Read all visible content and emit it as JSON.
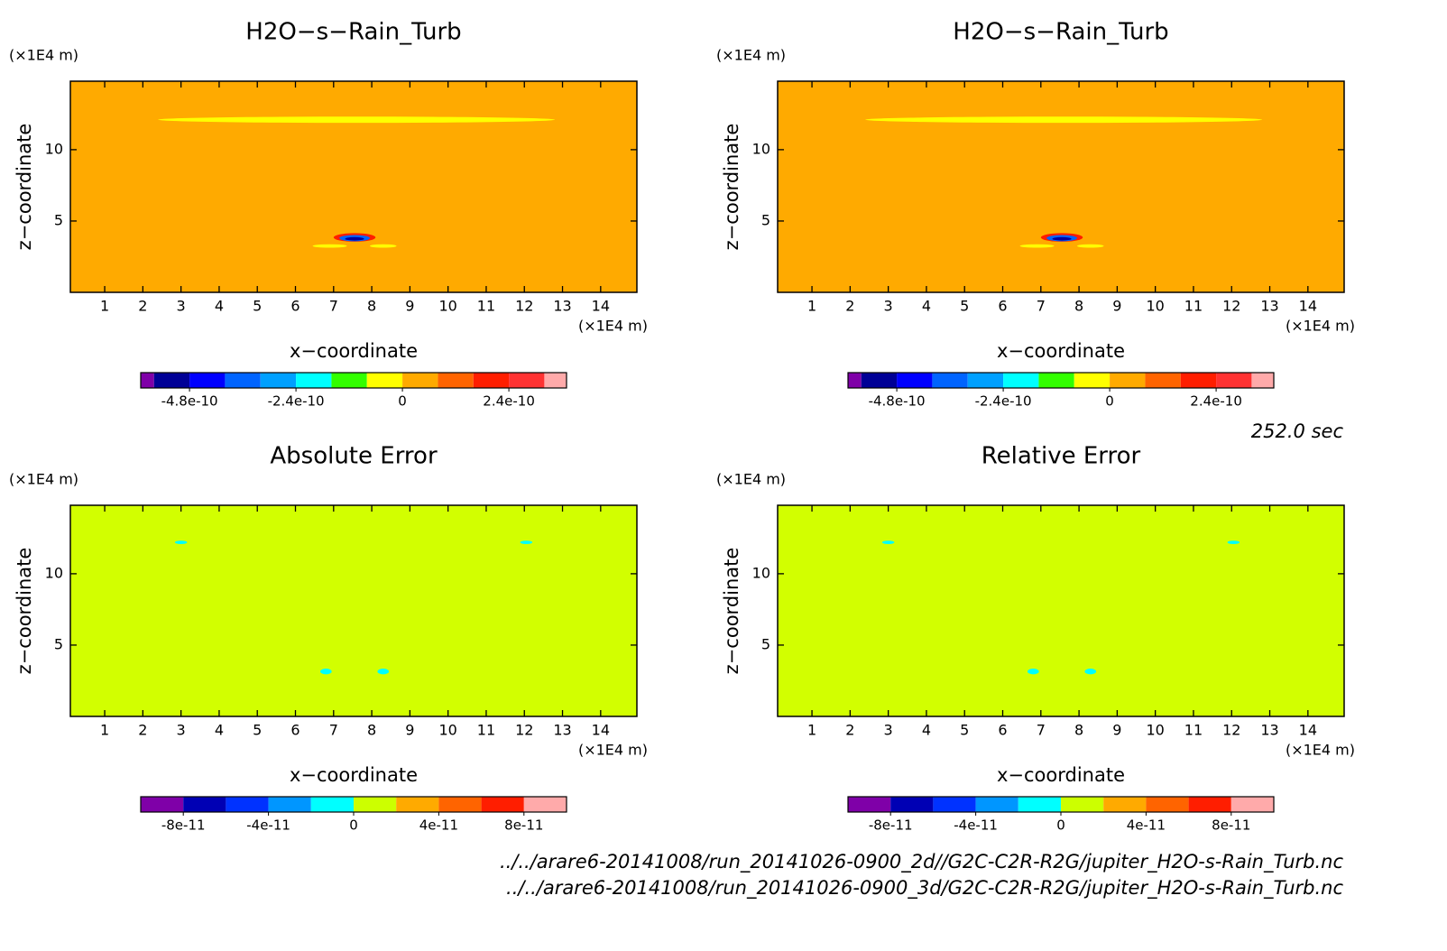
{
  "chart_data": [
    {
      "type": "contour",
      "title": "H2O−s−Rain_Turb",
      "x_label": "x−coordinate",
      "y_label": "z−coordinate",
      "x_unit": "(×1E4 m)",
      "y_unit": "(×1E4 m)",
      "xlim": [
        0.1,
        14.95
      ],
      "ylim": [
        0,
        14.8
      ],
      "xticks": [
        1,
        2,
        3,
        4,
        5,
        6,
        7,
        8,
        9,
        10,
        11,
        12,
        13,
        14
      ],
      "yticks": [
        5,
        10
      ],
      "field_color": "#ffaa00",
      "features": [
        {
          "cx": 7.6,
          "cy": 12.1,
          "rx": 5.2,
          "ry": 0.22,
          "color": "#ffff00"
        },
        {
          "cx": 6.9,
          "cy": 3.25,
          "rx": 0.45,
          "ry": 0.12,
          "color": "#ffff00"
        },
        {
          "cx": 8.3,
          "cy": 3.25,
          "rx": 0.35,
          "ry": 0.12,
          "color": "#ffff00"
        },
        {
          "cx": 7.55,
          "cy": 3.85,
          "rx": 0.55,
          "ry": 0.3,
          "color": "#ff1e00"
        },
        {
          "cx": 7.55,
          "cy": 3.8,
          "rx": 0.4,
          "ry": 0.22,
          "color": "#0064ff"
        },
        {
          "cx": 7.55,
          "cy": 3.75,
          "rx": 0.25,
          "ry": 0.12,
          "color": "#0000a0"
        }
      ],
      "colorbar": {
        "lim": [
          -5.9e-10,
          3.7e-10
        ],
        "ticks": [
          -4.8e-10,
          -2.4e-10,
          0,
          2.4e-10
        ],
        "levels": [
          -5.6e-10,
          -4.8e-10,
          -4e-10,
          -3.2e-10,
          -2.4e-10,
          -1.6e-10,
          -8e-11,
          0,
          8e-11,
          1.6e-10,
          2.4e-10,
          3.2e-10
        ],
        "colors": [
          "#7f00a8",
          "#000096",
          "#0000ff",
          "#0064ff",
          "#00a0ff",
          "#00ffff",
          "#32ff00",
          "#ffff00",
          "#ffaa00",
          "#ff6400",
          "#ff1e00",
          "#ff3232",
          "#ffaaaa"
        ]
      }
    },
    {
      "type": "contour",
      "title": "H2O−s−Rain_Turb",
      "x_label": "x−coordinate",
      "y_label": "z−coordinate",
      "x_unit": "(×1E4 m)",
      "y_unit": "(×1E4 m)",
      "xlim": [
        0.1,
        14.95
      ],
      "ylim": [
        0,
        14.8
      ],
      "xticks": [
        1,
        2,
        3,
        4,
        5,
        6,
        7,
        8,
        9,
        10,
        11,
        12,
        13,
        14
      ],
      "yticks": [
        5,
        10
      ],
      "field_color": "#ffaa00",
      "features": [
        {
          "cx": 7.6,
          "cy": 12.1,
          "rx": 5.2,
          "ry": 0.22,
          "color": "#ffff00"
        },
        {
          "cx": 6.9,
          "cy": 3.25,
          "rx": 0.45,
          "ry": 0.12,
          "color": "#ffff00"
        },
        {
          "cx": 8.3,
          "cy": 3.25,
          "rx": 0.35,
          "ry": 0.12,
          "color": "#ffff00"
        },
        {
          "cx": 7.55,
          "cy": 3.85,
          "rx": 0.55,
          "ry": 0.3,
          "color": "#ff1e00"
        },
        {
          "cx": 7.55,
          "cy": 3.8,
          "rx": 0.4,
          "ry": 0.22,
          "color": "#0064ff"
        },
        {
          "cx": 7.55,
          "cy": 3.75,
          "rx": 0.25,
          "ry": 0.12,
          "color": "#0000a0"
        }
      ],
      "colorbar": {
        "lim": [
          -5.9e-10,
          3.7e-10
        ],
        "ticks": [
          -4.8e-10,
          -2.4e-10,
          0,
          2.4e-10
        ],
        "levels": [
          -5.6e-10,
          -4.8e-10,
          -4e-10,
          -3.2e-10,
          -2.4e-10,
          -1.6e-10,
          -8e-11,
          0,
          8e-11,
          1.6e-10,
          2.4e-10,
          3.2e-10
        ],
        "colors": [
          "#7f00a8",
          "#000096",
          "#0000ff",
          "#0064ff",
          "#00a0ff",
          "#00ffff",
          "#32ff00",
          "#ffff00",
          "#ffaa00",
          "#ff6400",
          "#ff1e00",
          "#ff3232",
          "#ffaaaa"
        ]
      }
    },
    {
      "type": "contour",
      "title": "Absolute Error",
      "x_label": "x−coordinate",
      "y_label": "z−coordinate",
      "x_unit": "(×1E4 m)",
      "y_unit": "(×1E4 m)",
      "xlim": [
        0.1,
        14.95
      ],
      "ylim": [
        0,
        14.8
      ],
      "xticks": [
        1,
        2,
        3,
        4,
        5,
        6,
        7,
        8,
        9,
        10,
        11,
        12,
        13,
        14
      ],
      "yticks": [
        5,
        10
      ],
      "field_color": "#d2ff00",
      "features": [
        {
          "cx": 3.0,
          "cy": 12.2,
          "rx": 0.16,
          "ry": 0.12,
          "color": "#00ffff"
        },
        {
          "cx": 12.05,
          "cy": 12.2,
          "rx": 0.16,
          "ry": 0.12,
          "color": "#00ffff"
        },
        {
          "cx": 6.8,
          "cy": 3.15,
          "rx": 0.15,
          "ry": 0.2,
          "color": "#00ffff"
        },
        {
          "cx": 8.3,
          "cy": 3.15,
          "rx": 0.15,
          "ry": 0.2,
          "color": "#00ffff"
        }
      ],
      "colorbar": {
        "lim": [
          -1e-10,
          1e-10
        ],
        "ticks": [
          -8e-11,
          -4e-11,
          0,
          4e-11,
          8e-11
        ],
        "levels": [
          -8e-11,
          -6e-11,
          -4e-11,
          -2e-11,
          0,
          2e-11,
          4e-11,
          6e-11,
          8e-11
        ],
        "colors": [
          "#7f00a8",
          "#0000b4",
          "#0032ff",
          "#0096ff",
          "#00ffff",
          "#ccff00",
          "#ffaa00",
          "#ff6400",
          "#ff1e00",
          "#ffaaaa"
        ]
      }
    },
    {
      "type": "contour",
      "title": "Relative Error",
      "x_label": "x−coordinate",
      "y_label": "z−coordinate",
      "x_unit": "(×1E4 m)",
      "y_unit": "(×1E4 m)",
      "xlim": [
        0.1,
        14.95
      ],
      "ylim": [
        0,
        14.8
      ],
      "xticks": [
        1,
        2,
        3,
        4,
        5,
        6,
        7,
        8,
        9,
        10,
        11,
        12,
        13,
        14
      ],
      "yticks": [
        5,
        10
      ],
      "field_color": "#d2ff00",
      "features": [
        {
          "cx": 3.0,
          "cy": 12.2,
          "rx": 0.16,
          "ry": 0.12,
          "color": "#00ffff"
        },
        {
          "cx": 12.05,
          "cy": 12.2,
          "rx": 0.16,
          "ry": 0.12,
          "color": "#00ffff"
        },
        {
          "cx": 6.8,
          "cy": 3.15,
          "rx": 0.15,
          "ry": 0.2,
          "color": "#00ffff"
        },
        {
          "cx": 8.3,
          "cy": 3.15,
          "rx": 0.15,
          "ry": 0.2,
          "color": "#00ffff"
        }
      ],
      "colorbar": {
        "lim": [
          -1e-10,
          1e-10
        ],
        "ticks": [
          -8e-11,
          -4e-11,
          0,
          4e-11,
          8e-11
        ],
        "levels": [
          -8e-11,
          -6e-11,
          -4e-11,
          -2e-11,
          0,
          2e-11,
          4e-11,
          6e-11,
          8e-11
        ],
        "colors": [
          "#7f00a8",
          "#0000b4",
          "#0032ff",
          "#0096ff",
          "#00ffff",
          "#ccff00",
          "#ffaa00",
          "#ff6400",
          "#ff1e00",
          "#ffaaaa"
        ]
      }
    }
  ],
  "time_label": "252.0 sec",
  "files": [
    "../../arare6-20141008/run_20141026-0900_2d//G2C-C2R-R2G/jupiter_H2O-s-Rain_Turb.nc",
    "../../arare6-20141008/run_20141026-0900_3d/G2C-C2R-R2G/jupiter_H2O-s-Rain_Turb.nc"
  ]
}
